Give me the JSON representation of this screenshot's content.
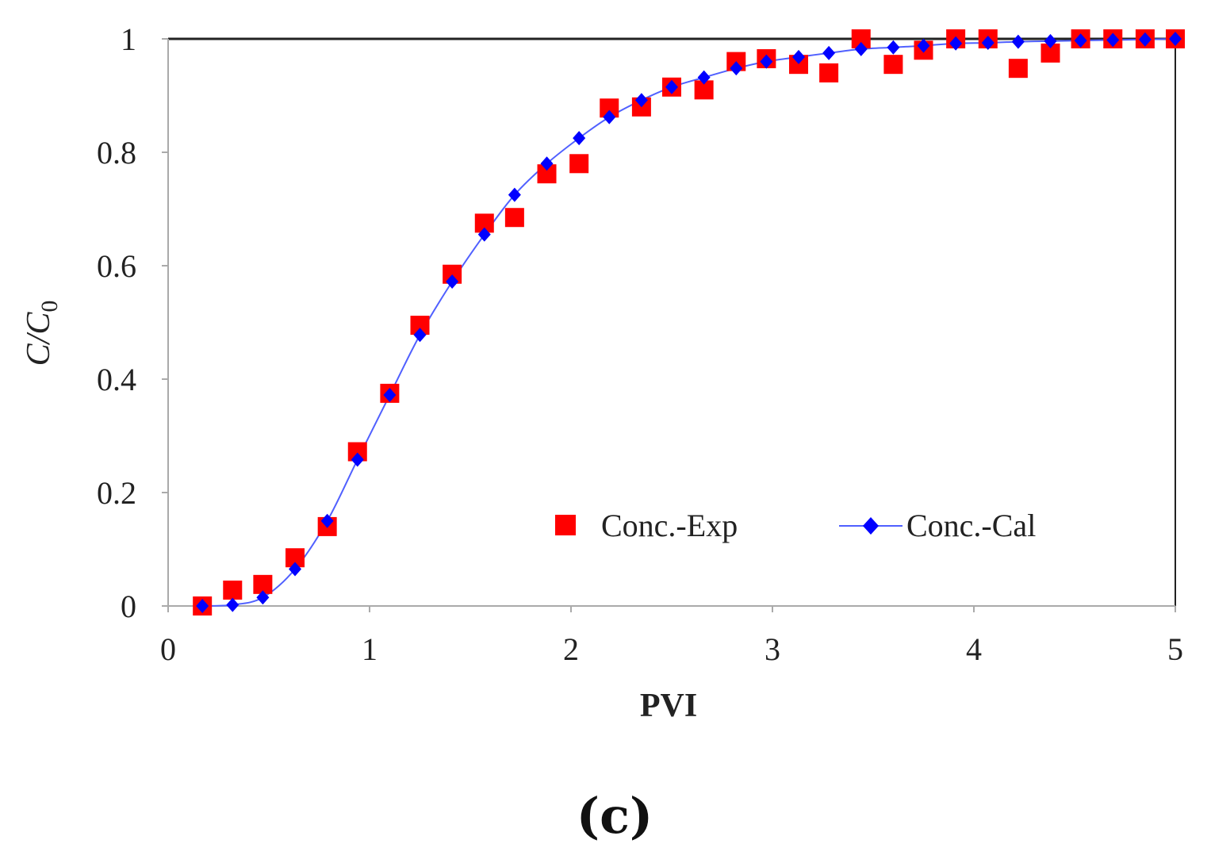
{
  "chart_data": {
    "type": "scatter",
    "title": "",
    "xlabel": "PVI",
    "ylabel": {
      "main": "C/C",
      "subscript": "0"
    },
    "xlim": [
      0,
      5
    ],
    "ylim": [
      0,
      1
    ],
    "xticks": [
      0,
      1,
      2,
      3,
      4,
      5
    ],
    "yticks": [
      0,
      0.2,
      0.4,
      0.6,
      0.8,
      1
    ],
    "xtick_labels": [
      "0",
      "1",
      "2",
      "3",
      "4",
      "5"
    ],
    "ytick_labels": [
      "0",
      "0.2",
      "0.4",
      "0.6",
      "0.8",
      "1"
    ],
    "grid": false,
    "legend_position": "bottom-right",
    "panel_label": "(c)",
    "series": [
      {
        "name": "Conc.-Exp",
        "marker": "square",
        "color": "#ff0000",
        "line": false,
        "x": [
          0.17,
          0.32,
          0.47,
          0.63,
          0.79,
          0.94,
          1.1,
          1.25,
          1.41,
          1.57,
          1.72,
          1.88,
          2.04,
          2.19,
          2.35,
          2.5,
          2.66,
          2.82,
          2.97,
          3.13,
          3.28,
          3.44,
          3.6,
          3.75,
          3.91,
          4.07,
          4.22,
          4.38,
          4.53,
          4.69,
          4.85,
          5.0
        ],
        "y": [
          0.0,
          0.028,
          0.038,
          0.085,
          0.14,
          0.272,
          0.375,
          0.495,
          0.585,
          0.675,
          0.685,
          0.762,
          0.78,
          0.878,
          0.88,
          0.915,
          0.91,
          0.96,
          0.965,
          0.955,
          0.94,
          1.0,
          0.955,
          0.98,
          1.0,
          1.0,
          0.948,
          0.975,
          1.0,
          1.0,
          1.0,
          1.0
        ]
      },
      {
        "name": "Conc.-Cal",
        "marker": "diamond",
        "color": "#0000ff",
        "line": true,
        "x": [
          0.17,
          0.32,
          0.47,
          0.63,
          0.79,
          0.94,
          1.1,
          1.25,
          1.41,
          1.57,
          1.72,
          1.88,
          2.04,
          2.19,
          2.35,
          2.5,
          2.66,
          2.82,
          2.97,
          3.13,
          3.28,
          3.44,
          3.6,
          3.75,
          3.91,
          4.07,
          4.22,
          4.38,
          4.53,
          4.69,
          4.85,
          5.0
        ],
        "y": [
          0.0,
          0.002,
          0.015,
          0.065,
          0.15,
          0.258,
          0.372,
          0.478,
          0.572,
          0.655,
          0.725,
          0.78,
          0.825,
          0.862,
          0.892,
          0.915,
          0.932,
          0.948,
          0.96,
          0.968,
          0.975,
          0.982,
          0.985,
          0.988,
          0.992,
          0.993,
          0.995,
          0.996,
          0.997,
          0.998,
          0.999,
          1.0
        ]
      }
    ]
  },
  "colors": {
    "exp": "#ff0000",
    "cal": "#0000ff",
    "axis": "#222222",
    "frame": "#aaaaaa"
  }
}
